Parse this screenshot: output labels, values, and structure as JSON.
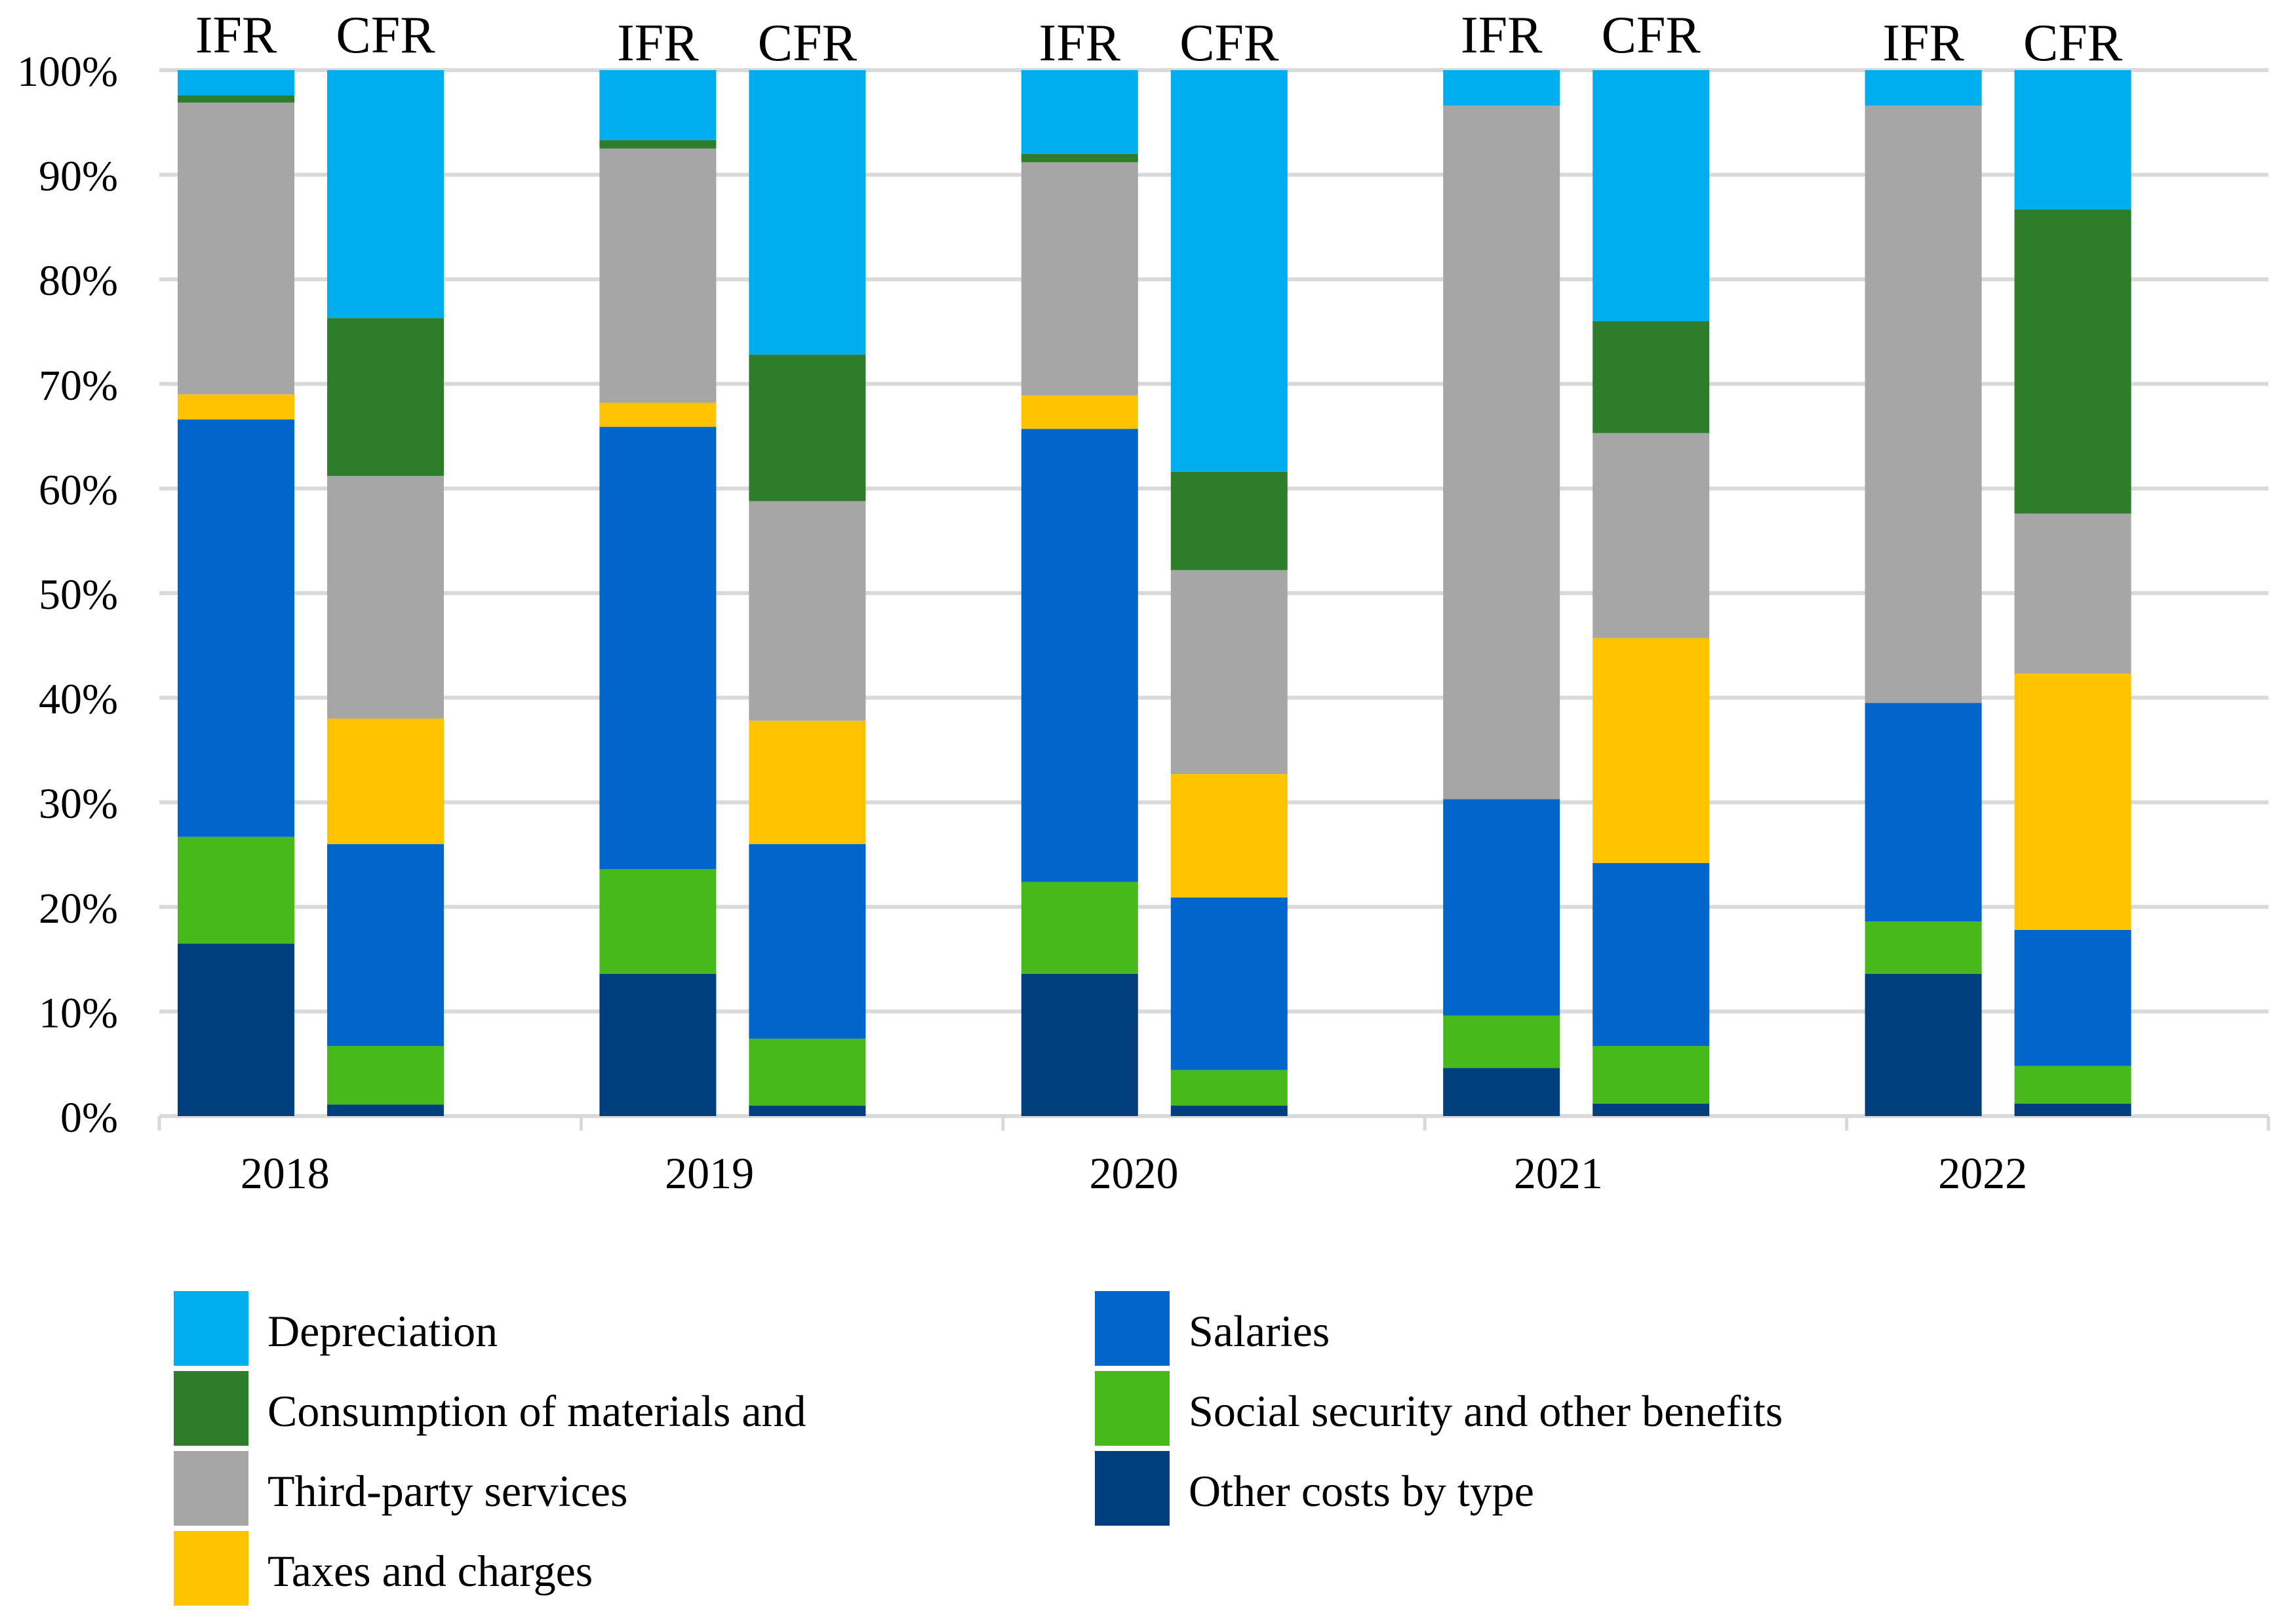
{
  "chart_data": {
    "type": "bar",
    "stacked": true,
    "normalized": true,
    "groups": [
      "2018",
      "2019",
      "2020",
      "2021",
      "2022"
    ],
    "bars": [
      "IFR",
      "CFR"
    ],
    "y_ticks": [
      "0%",
      "10%",
      "20%",
      "30%",
      "40%",
      "50%",
      "60%",
      "70%",
      "80%",
      "90%",
      "100%"
    ],
    "ylim": [
      0,
      100
    ],
    "grid": true,
    "legend_position": "bottom",
    "series": [
      {
        "name": "Other costs by type",
        "color": "#003f7d",
        "values": {
          "IFR": [
            16.5,
            13.6,
            13.6,
            4.6,
            13.6
          ],
          "CFR": [
            1.1,
            1.0,
            1.0,
            1.2,
            1.2
          ]
        }
      },
      {
        "name": "Social security and other benefits",
        "color": "#47b91a",
        "values": {
          "IFR": [
            10.2,
            10.0,
            8.8,
            5.0,
            5.0
          ],
          "CFR": [
            5.6,
            6.4,
            3.4,
            5.5,
            3.6
          ]
        }
      },
      {
        "name": "Salaries",
        "color": "#0066cc",
        "values": {
          "IFR": [
            39.9,
            42.3,
            43.3,
            20.7,
            20.9
          ],
          "CFR": [
            19.3,
            18.6,
            16.5,
            17.5,
            13.0
          ]
        }
      },
      {
        "name": "Taxes and charges",
        "color": "#ffc300",
        "values": {
          "IFR": [
            2.4,
            2.3,
            3.2,
            0.0,
            0.0
          ],
          "CFR": [
            12.0,
            11.8,
            11.8,
            21.5,
            24.5
          ]
        }
      },
      {
        "name": "Third-party services",
        "color": "#a6a6a6",
        "values": {
          "IFR": [
            27.9,
            24.3,
            22.3,
            66.3,
            57.1
          ],
          "CFR": [
            23.2,
            21.0,
            19.5,
            19.6,
            15.3
          ]
        }
      },
      {
        "name": "Consumption of materials and",
        "color": "#2e7d2b",
        "values": {
          "IFR": [
            0.7,
            0.8,
            0.8,
            0.0,
            0.0
          ],
          "CFR": [
            15.1,
            14.0,
            9.4,
            10.7,
            29.1
          ]
        }
      },
      {
        "name": "Depreciation",
        "color": "#00aeef",
        "values": {
          "IFR": [
            2.4,
            6.7,
            8.0,
            3.4,
            3.4
          ],
          "CFR": [
            23.7,
            27.2,
            38.4,
            24.0,
            13.3
          ]
        }
      }
    ],
    "legend": [
      "Depreciation",
      "Consumption of materials and",
      "Third-party services",
      "Taxes and charges",
      "Salaries",
      "Social security and other benefits",
      "Other costs by type"
    ]
  }
}
